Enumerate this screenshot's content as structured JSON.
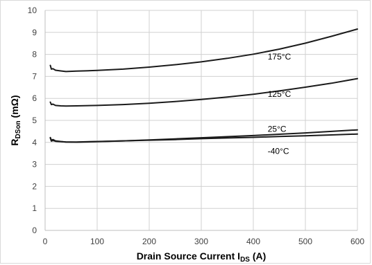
{
  "chart_data": {
    "type": "line",
    "title": "",
    "xlabel": {
      "main": "Drain Source Current I",
      "sub": "DS",
      "suffix": " (A)"
    },
    "ylabel": {
      "main": "R",
      "sub": "DSon",
      "suffix": " (mΩ)"
    },
    "xlim": [
      0,
      600
    ],
    "ylim": [
      0,
      10
    ],
    "x_ticks": [
      0,
      100,
      200,
      300,
      400,
      500,
      600
    ],
    "y_ticks": [
      0,
      1,
      2,
      3,
      4,
      5,
      6,
      7,
      8,
      9,
      10
    ],
    "grid": true,
    "legend": "inline labels",
    "line_color": "#1a1a1a",
    "series": [
      {
        "name": "175°C",
        "label_at": [
          505,
          7.9
        ],
        "points": [
          [
            10,
            7.5
          ],
          [
            12,
            7.33
          ],
          [
            15,
            7.35
          ],
          [
            20,
            7.28
          ],
          [
            30,
            7.25
          ],
          [
            40,
            7.22
          ],
          [
            60,
            7.24
          ],
          [
            100,
            7.27
          ],
          [
            150,
            7.33
          ],
          [
            200,
            7.42
          ],
          [
            250,
            7.53
          ],
          [
            300,
            7.66
          ],
          [
            350,
            7.82
          ],
          [
            400,
            8.01
          ],
          [
            450,
            8.24
          ],
          [
            500,
            8.51
          ],
          [
            550,
            8.82
          ],
          [
            600,
            9.15
          ]
        ]
      },
      {
        "name": "125°C",
        "label_at": [
          505,
          6.2
        ],
        "points": [
          [
            10,
            5.83
          ],
          [
            12,
            5.72
          ],
          [
            15,
            5.74
          ],
          [
            20,
            5.68
          ],
          [
            30,
            5.66
          ],
          [
            40,
            5.65
          ],
          [
            60,
            5.66
          ],
          [
            100,
            5.68
          ],
          [
            150,
            5.72
          ],
          [
            200,
            5.78
          ],
          [
            250,
            5.86
          ],
          [
            300,
            5.95
          ],
          [
            350,
            6.06
          ],
          [
            400,
            6.19
          ],
          [
            450,
            6.34
          ],
          [
            500,
            6.51
          ],
          [
            550,
            6.69
          ],
          [
            600,
            6.9
          ]
        ]
      },
      {
        "name": "25°C",
        "label_at": [
          505,
          4.6
        ],
        "points": [
          [
            10,
            4.22
          ],
          [
            12,
            4.1
          ],
          [
            15,
            4.13
          ],
          [
            20,
            4.07
          ],
          [
            30,
            4.04
          ],
          [
            40,
            4.02
          ],
          [
            60,
            4.01
          ],
          [
            100,
            4.03
          ],
          [
            150,
            4.07
          ],
          [
            200,
            4.11
          ],
          [
            250,
            4.16
          ],
          [
            300,
            4.21
          ],
          [
            350,
            4.26
          ],
          [
            400,
            4.31
          ],
          [
            450,
            4.37
          ],
          [
            500,
            4.43
          ],
          [
            550,
            4.5
          ],
          [
            600,
            4.57
          ]
        ]
      },
      {
        "name": "-40°C",
        "label_at": [
          505,
          3.6
        ],
        "points": [
          [
            10,
            4.2
          ],
          [
            12,
            4.06
          ],
          [
            15,
            4.09
          ],
          [
            20,
            4.05
          ],
          [
            30,
            4.03
          ],
          [
            40,
            4.02
          ],
          [
            60,
            4.02
          ],
          [
            100,
            4.04
          ],
          [
            150,
            4.07
          ],
          [
            200,
            4.1
          ],
          [
            250,
            4.13
          ],
          [
            300,
            4.17
          ],
          [
            350,
            4.2
          ],
          [
            400,
            4.23
          ],
          [
            450,
            4.27
          ],
          [
            500,
            4.3
          ],
          [
            550,
            4.34
          ],
          [
            600,
            4.38
          ]
        ]
      }
    ]
  }
}
